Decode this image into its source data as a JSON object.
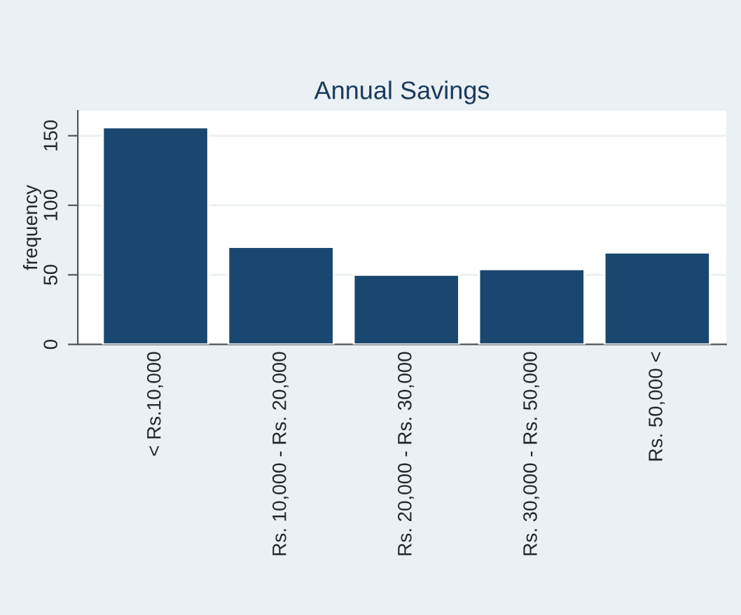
{
  "chart_data": {
    "type": "bar",
    "title": "Annual Savings",
    "ylabel": "frequency",
    "categories": [
      "< Rs.10,000",
      "Rs. 10,000 - Rs. 20,000",
      "Rs. 20,000 - Rs. 30,000",
      "Rs. 30,000 - Rs. 50,000",
      "Rs. 50,000 <"
    ],
    "values": [
      156,
      70,
      50,
      54,
      66
    ],
    "color": "#1a476f",
    "ylim": [
      0,
      168
    ],
    "yticks": [
      0,
      50,
      100,
      150
    ],
    "grid": "y"
  }
}
